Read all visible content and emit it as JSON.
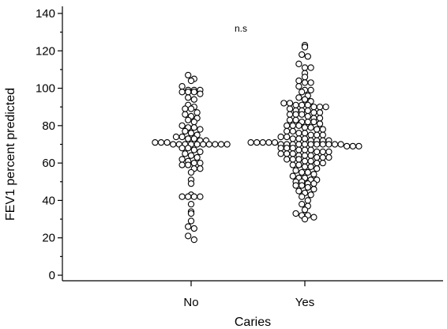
{
  "chart_data": {
    "type": "scatter",
    "style": "dot-plot",
    "categories": [
      "No",
      "Yes"
    ],
    "xlabel": "Caries",
    "ylabel": "FEV1 percent predicted",
    "ylim": [
      0,
      140
    ],
    "yticks": [
      0,
      20,
      40,
      60,
      80,
      100,
      120,
      140
    ],
    "annotation": "n.s",
    "grid": false,
    "series": [
      {
        "category": "No",
        "values": [
          107,
          105,
          104,
          101,
          99,
          99,
          99,
          98,
          98,
          98,
          97,
          95,
          94,
          91,
          90,
          89,
          89,
          87,
          86,
          85,
          84,
          83,
          82,
          80,
          79,
          79,
          78,
          77,
          76,
          75,
          74,
          74,
          73,
          73,
          72,
          72,
          71,
          71,
          71,
          70,
          70,
          70,
          70,
          70,
          70,
          70,
          70,
          70,
          70,
          68,
          68,
          67,
          66,
          65,
          64,
          63,
          62,
          61,
          60,
          60,
          59,
          59,
          57,
          57,
          55,
          51,
          49,
          43,
          42,
          42,
          42,
          42,
          38,
          34,
          33,
          29,
          26,
          25,
          21,
          19
        ]
      },
      {
        "category": "Yes",
        "values": [
          123,
          122,
          118,
          117,
          113,
          111,
          111,
          108,
          106,
          104,
          103,
          103,
          101,
          99,
          99,
          98,
          96,
          95,
          94,
          93,
          92,
          92,
          91,
          91,
          91,
          90,
          90,
          90,
          89,
          88,
          88,
          88,
          87,
          87,
          86,
          86,
          86,
          85,
          84,
          84,
          83,
          83,
          82,
          82,
          82,
          81,
          80,
          80,
          80,
          79,
          79,
          78,
          78,
          77,
          77,
          76,
          76,
          75,
          75,
          75,
          74,
          74,
          73,
          73,
          73,
          72,
          72,
          72,
          72,
          71,
          71,
          71,
          71,
          71,
          70,
          70,
          70,
          70,
          70,
          70,
          70,
          70,
          70,
          70,
          70,
          69,
          69,
          69,
          68,
          68,
          68,
          67,
          67,
          67,
          66,
          66,
          66,
          65,
          65,
          65,
          64,
          64,
          64,
          63,
          63,
          63,
          62,
          62,
          62,
          61,
          61,
          60,
          60,
          59,
          59,
          58,
          58,
          57,
          56,
          55,
          55,
          54,
          53,
          52,
          52,
          51,
          51,
          50,
          50,
          49,
          49,
          48,
          48,
          47,
          46,
          45,
          44,
          43,
          42,
          40,
          38,
          37,
          35,
          33,
          32,
          32,
          31,
          30
        ]
      }
    ]
  }
}
